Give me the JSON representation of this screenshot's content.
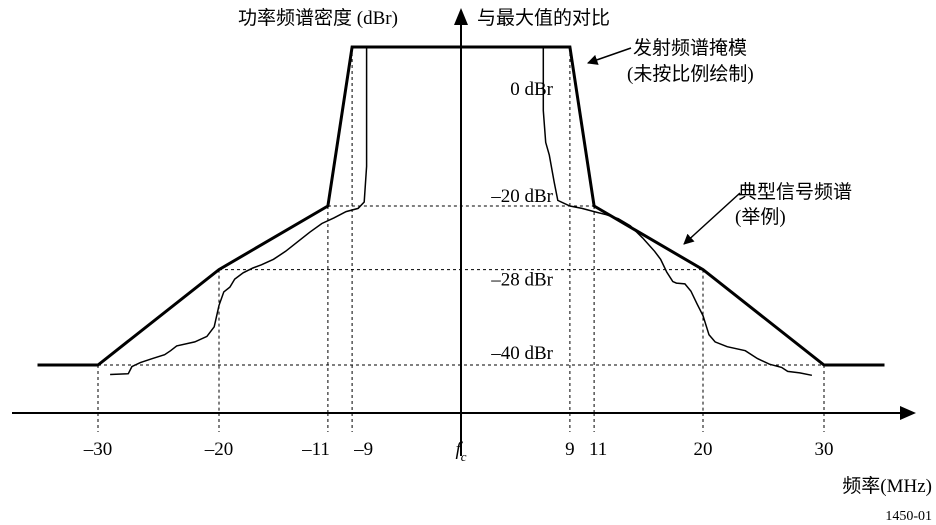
{
  "chart_data": {
    "type": "line",
    "ylabel": "功率频谱密度 (dBr) 与最大值的对比",
    "xlabel": "频率(MHz)",
    "figure_id": "1450-01",
    "xlim": [
      -35,
      35
    ],
    "ylim": [
      -45,
      3
    ],
    "x_ticks": [
      {
        "value": -30,
        "label": "–30"
      },
      {
        "value": -20,
        "label": "–20"
      },
      {
        "value": -11,
        "label": "–11"
      },
      {
        "value": -9,
        "label": "–9"
      },
      {
        "value": 0,
        "label": "f",
        "sub": "c"
      },
      {
        "value": 9,
        "label": "9"
      },
      {
        "value": 11,
        "label": "11"
      },
      {
        "value": 20,
        "label": "20"
      },
      {
        "value": 30,
        "label": "30"
      }
    ],
    "y_labels": [
      {
        "value": 0,
        "label": "0 dBr"
      },
      {
        "value": -20,
        "label": "–20 dBr"
      },
      {
        "value": -28,
        "label": "–28 dBr"
      },
      {
        "value": -40,
        "label": "–40 dBr"
      }
    ],
    "series": [
      {
        "name": "发射频谱掩模",
        "name_note": "(未按比例绘制)",
        "style": "bold",
        "points": [
          [
            -35,
            -40
          ],
          [
            -30,
            -40
          ],
          [
            -20,
            -28
          ],
          [
            -11,
            -20
          ],
          [
            -9,
            0
          ],
          [
            9,
            0
          ],
          [
            11,
            -20
          ],
          [
            20,
            -28
          ],
          [
            30,
            -40
          ],
          [
            35,
            -40
          ]
        ]
      },
      {
        "name": "典型信号频谱",
        "name_note": "(举例)",
        "style": "thin",
        "points": [
          [
            -29,
            -41.2
          ],
          [
            -27.5,
            -41.1
          ],
          [
            -27.2,
            -40.2
          ],
          [
            -26.5,
            -39.7
          ],
          [
            -25.5,
            -39.2
          ],
          [
            -24.5,
            -38.7
          ],
          [
            -24,
            -38.2
          ],
          [
            -23.5,
            -37.6
          ],
          [
            -22,
            -37.1
          ],
          [
            -21,
            -36.4
          ],
          [
            -20.4,
            -35.2
          ],
          [
            -20,
            -32.5
          ],
          [
            -19.6,
            -30.8
          ],
          [
            -19.1,
            -30.2
          ],
          [
            -18.7,
            -29.2
          ],
          [
            -18,
            -28.4
          ],
          [
            -17.2,
            -27.8
          ],
          [
            -16.5,
            -27.4
          ],
          [
            -15.5,
            -26.7
          ],
          [
            -14.5,
            -25.7
          ],
          [
            -13.5,
            -24.5
          ],
          [
            -12.5,
            -23.3
          ],
          [
            -11.5,
            -22.2
          ],
          [
            -10.5,
            -21.5
          ],
          [
            -9.5,
            -20.7
          ],
          [
            -8.5,
            -20.3
          ],
          [
            -8,
            -19.5
          ],
          [
            -7.8,
            -15
          ],
          [
            -7.8,
            0
          ],
          [
            6.8,
            0
          ],
          [
            6.8,
            -8
          ],
          [
            7,
            -12
          ],
          [
            7.3,
            -13.6
          ],
          [
            7.7,
            -17
          ],
          [
            8,
            -19.3
          ],
          [
            9,
            -20
          ],
          [
            10,
            -20.3
          ],
          [
            11,
            -20.7
          ],
          [
            12,
            -21.1
          ],
          [
            13,
            -21.6
          ],
          [
            14,
            -22.5
          ],
          [
            15,
            -24
          ],
          [
            16,
            -25.7
          ],
          [
            16.5,
            -26.7
          ],
          [
            17,
            -28.3
          ],
          [
            17.5,
            -29.5
          ],
          [
            17.8,
            -29.7
          ],
          [
            18.5,
            -29.8
          ],
          [
            19,
            -30.7
          ],
          [
            19.5,
            -32.3
          ],
          [
            20,
            -33.8
          ],
          [
            20.5,
            -36.2
          ],
          [
            21,
            -37.1
          ],
          [
            22,
            -37.7
          ],
          [
            23.5,
            -38.2
          ],
          [
            24.5,
            -39.2
          ],
          [
            25.5,
            -39.9
          ],
          [
            26.5,
            -40.3
          ],
          [
            27,
            -40.8
          ],
          [
            28,
            -41
          ],
          [
            29,
            -41.3
          ]
        ]
      }
    ],
    "guides_y": [
      -20,
      -28,
      -40
    ],
    "guides_x": [
      -30,
      -20,
      -11,
      -9,
      9,
      11,
      20,
      30
    ],
    "grid": false,
    "legend": "annotations (callouts with arrows)"
  }
}
